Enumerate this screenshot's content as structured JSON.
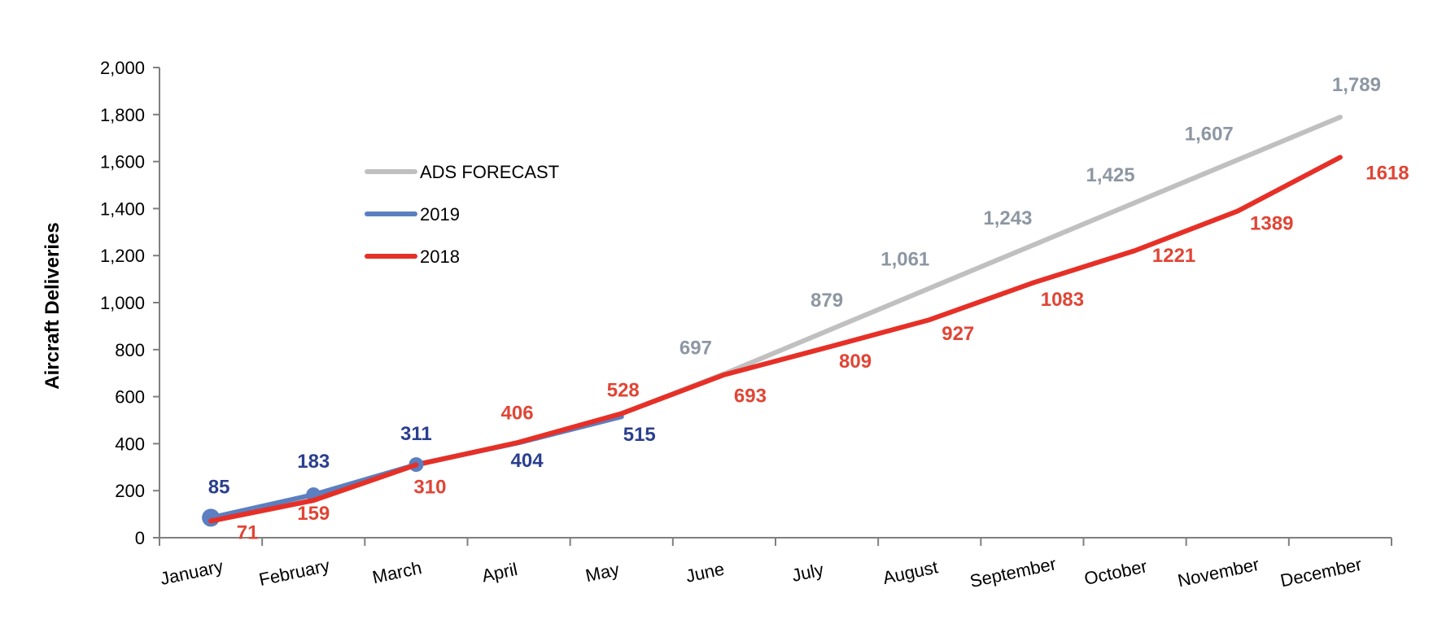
{
  "chart_data": {
    "type": "line",
    "title": "",
    "xlabel": "",
    "ylabel": "Aircraft Deliveries",
    "ylim": [
      0,
      2000
    ],
    "yticks": [
      0,
      200,
      400,
      600,
      800,
      1000,
      1200,
      1400,
      1600,
      1800,
      2000
    ],
    "ytick_labels": [
      "0",
      "200",
      "400",
      "600",
      "800",
      "1,000",
      "1,200",
      "1,400",
      "1,600",
      "1,800",
      "2,000"
    ],
    "categories": [
      "January",
      "February",
      "March",
      "April",
      "May",
      "June",
      "July",
      "August",
      "September",
      "October",
      "November",
      "December"
    ],
    "grid": false,
    "legend_position": "upper-left",
    "series": [
      {
        "name": "ADS FORECAST",
        "color": "#c0c0c0",
        "label_color": "#8d97a3",
        "values": [
          null,
          null,
          null,
          null,
          null,
          697,
          879,
          1061,
          1243,
          1425,
          1607,
          1789
        ],
        "labels": [
          "",
          "",
          "",
          "",
          "",
          "697",
          "879",
          "1,061",
          "1,243",
          "1,425",
          "1,607",
          "1,789"
        ],
        "line_start_index": 4
      },
      {
        "name": "2019",
        "color": "#5b7fc0",
        "label_color": "#2b3f8f",
        "values": [
          85,
          183,
          311,
          404,
          515,
          null,
          null,
          null,
          null,
          null,
          null,
          null
        ],
        "labels": [
          "85",
          "183",
          "311",
          "404",
          "515",
          "",
          "",
          "",
          "",
          "",
          "",
          ""
        ],
        "markers_at": [
          0,
          1,
          2
        ]
      },
      {
        "name": "2018",
        "color": "#e63027",
        "label_color": "#e04535",
        "values": [
          71,
          159,
          310,
          406,
          528,
          693,
          809,
          927,
          1083,
          1221,
          1389,
          1618
        ],
        "labels": [
          "71",
          "159",
          "310",
          "406",
          "528",
          "693",
          "809",
          "927",
          "1083",
          "1221",
          "1389",
          "1618"
        ]
      }
    ]
  }
}
